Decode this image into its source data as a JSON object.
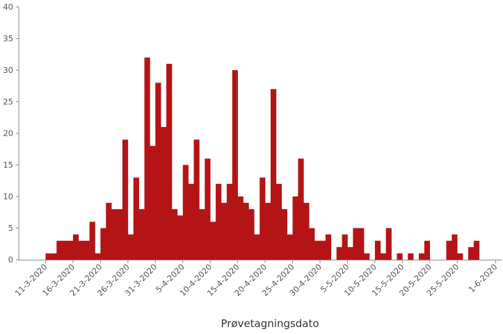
{
  "chart_data": {
    "type": "bar",
    "title": "",
    "xlabel": "Prøvetagningsdato",
    "ylabel": "",
    "ylim": [
      0,
      40
    ],
    "yticks": [
      "0",
      "5",
      "10",
      "15",
      "20",
      "25",
      "30",
      "35",
      "40"
    ],
    "x_start_date": "11-3-2020",
    "xticks": [
      "11-3-2020",
      "16-3-2020",
      "21-3-2020",
      "26-3-2020",
      "31-3-2020",
      "5-4-2020",
      "10-4-2020",
      "15-4-2020",
      "20-4-2020",
      "25-4-2020",
      "30-4-2020",
      "5-5-2020",
      "10-5-2020",
      "15-5-2020",
      "20-5-2020",
      "25-5-2020",
      "1-6-2020"
    ],
    "values": [
      1,
      1,
      3,
      3,
      3,
      4,
      3,
      3,
      6,
      1,
      5,
      9,
      8,
      8,
      19,
      4,
      13,
      8,
      32,
      18,
      28,
      21,
      31,
      8,
      7,
      15,
      12,
      19,
      8,
      16,
      6,
      12,
      9,
      12,
      30,
      10,
      9,
      8,
      4,
      13,
      9,
      27,
      12,
      8,
      4,
      10,
      16,
      9,
      5,
      3,
      3,
      4,
      0,
      2,
      4,
      2,
      5,
      5,
      1,
      0,
      3,
      1,
      5,
      0,
      1,
      0,
      1,
      0,
      1,
      3,
      0,
      0,
      0,
      3,
      4,
      1,
      0,
      2,
      3
    ],
    "bar_color": "#b51416",
    "grid": false
  }
}
